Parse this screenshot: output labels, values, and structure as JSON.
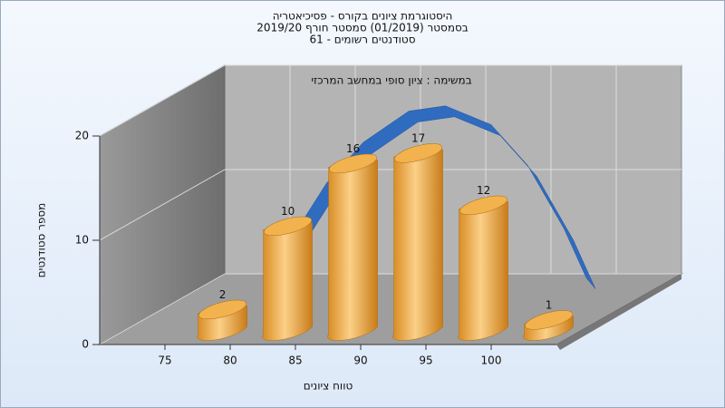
{
  "chart_data": {
    "type": "histogram",
    "title": [
      "היסטוגרמת ציונים בקורס - פסיכיאטריה",
      "בסמסטר  (01/2019)  סמסטר חורף 2019/20",
      "סטודנטים רשומים - 61"
    ],
    "subtitle": "במשימה : ציון סופי במחשב המרכזי",
    "x_label": "טווח ציונים",
    "y_label": "מספר סטודנטים",
    "bins": [
      75,
      80,
      85,
      90,
      95,
      100,
      105
    ],
    "values": [
      2,
      10,
      16,
      17,
      12,
      1
    ],
    "color": "#f0b050",
    "curve": {
      "color": "#2f6cc0",
      "x": [
        79.5,
        82.6,
        85.4,
        88.9,
        91.7,
        95.2,
        98,
        100.8,
        102.5
      ],
      "values": [
        5.3,
        11.4,
        15.3,
        18.3,
        18.8,
        17,
        13.1,
        7,
        2.3
      ]
    },
    "xlim": [
      70,
      105
    ],
    "xticks": [
      75,
      80,
      85,
      90,
      95,
      100
    ],
    "ylim": [
      0,
      20
    ],
    "yticks": [
      0,
      10,
      20
    ],
    "grid": true
  }
}
